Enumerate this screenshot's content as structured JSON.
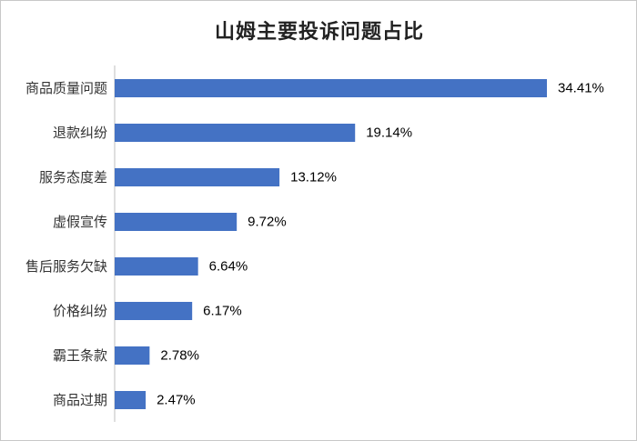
{
  "chart_data": {
    "type": "bar",
    "orientation": "horizontal",
    "title": "山姆主要投诉问题占比",
    "categories": [
      "商品质量问题",
      "退款纠纷",
      "服务态度差",
      "虚假宣传",
      "售后服务欠缺",
      "价格纠纷",
      "霸王条款",
      "商品过期"
    ],
    "values": [
      34.41,
      19.14,
      13.12,
      9.72,
      6.64,
      6.17,
      2.78,
      2.47
    ],
    "data_labels": [
      "34.41%",
      "19.14%",
      "13.12%",
      "9.72%",
      "6.64%",
      "6.17%",
      "2.78%",
      "2.47%"
    ],
    "xlim": [
      0,
      34.41
    ],
    "bar_color": "#4472c4",
    "grid": false,
    "legend": "none"
  }
}
